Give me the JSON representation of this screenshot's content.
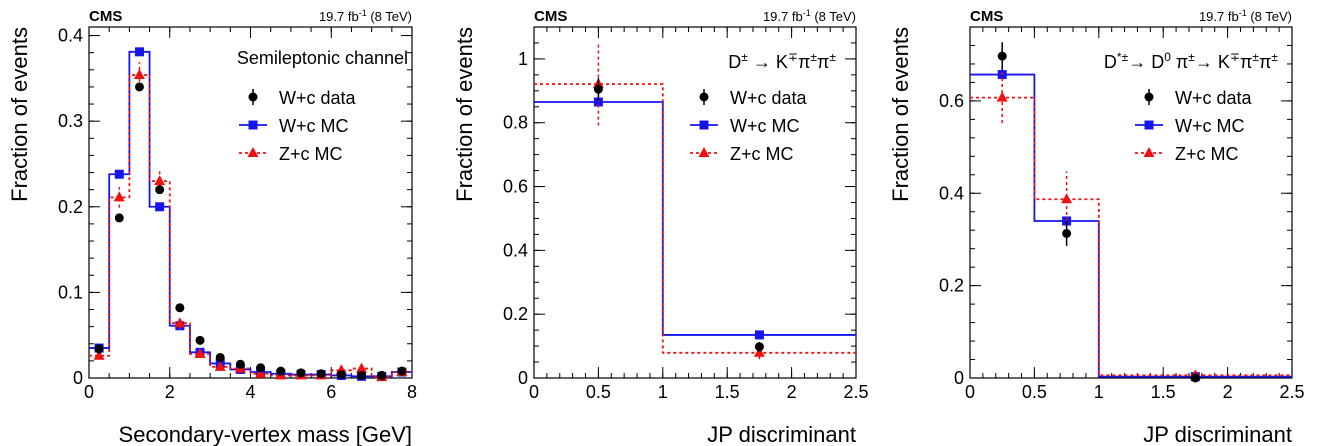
{
  "chart_data": [
    {
      "type": "line",
      "experiment": "CMS",
      "lumi": {
        "pre": "19.7 fb",
        "sup": "-1",
        "post": " (8 TeV)"
      },
      "title": "Semileptonic channel",
      "title_parts": [
        {
          "t": "Semileptonic channel"
        }
      ],
      "xlabel": "Secondary-vertex mass [GeV]",
      "ylabel": "Fraction of events",
      "xlim": [
        0,
        8
      ],
      "ylim": [
        0,
        0.41
      ],
      "xticks": [
        0,
        2,
        4,
        6,
        8
      ],
      "xtick_labels": [
        "0",
        "2",
        "4",
        "6",
        "8"
      ],
      "yticks": [
        0,
        0.1,
        0.2,
        0.3,
        0.4
      ],
      "ytick_labels": [
        "0",
        "0.1",
        "0.2",
        "0.3",
        "0.4"
      ],
      "x_minor_step": 0.5,
      "y_minor_step": 0.02,
      "bin_edges": [
        0,
        0.5,
        1,
        1.5,
        2,
        2.5,
        3,
        3.5,
        4,
        4.5,
        5,
        5.5,
        6,
        6.5,
        7,
        7.5,
        8
      ],
      "legend": {
        "position": "top-right",
        "entries": [
          "W+c data",
          "W+c MC",
          "Z+c MC"
        ]
      },
      "series": [
        {
          "name": "W+c data",
          "style": "points",
          "x": [
            0.25,
            0.75,
            1.25,
            1.75,
            2.25,
            2.75,
            3.25,
            3.75,
            4.25,
            4.75,
            5.25,
            5.75,
            6.25,
            6.75,
            7.25,
            7.75
          ],
          "values": [
            0.034,
            0.187,
            0.34,
            0.22,
            0.082,
            0.044,
            0.024,
            0.016,
            0.012,
            0.008,
            0.006,
            0.005,
            0.004,
            0.003,
            0.003,
            0.008
          ]
        },
        {
          "name": "W+c MC",
          "style": "histogram",
          "x": [
            0.25,
            0.75,
            1.25,
            1.75,
            2.25,
            2.75,
            3.25,
            3.75,
            4.25,
            4.75,
            5.25,
            5.75,
            6.25,
            6.75,
            7.25,
            7.75
          ],
          "values": [
            0.035,
            0.238,
            0.381,
            0.2,
            0.061,
            0.03,
            0.017,
            0.01,
            0.007,
            0.005,
            0.004,
            0.004,
            0.003,
            0.002,
            0.002,
            0.007
          ]
        },
        {
          "name": "Z+c MC",
          "style": "histogram-dashed",
          "x": [
            0.25,
            0.75,
            1.25,
            1.75,
            2.25,
            2.75,
            3.25,
            3.75,
            4.25,
            4.75,
            5.25,
            5.75,
            6.25,
            6.75,
            7.25,
            7.75
          ],
          "values": [
            0.026,
            0.211,
            0.354,
            0.23,
            0.064,
            0.028,
            0.013,
            0.011,
            0.005,
            0.003,
            0.003,
            0.003,
            0.009,
            0.011,
            0.001,
            0.007
          ],
          "errors": [
            0.004,
            0.012,
            0.015,
            0.013,
            0.007,
            0.005,
            0.004,
            0.004,
            0.003,
            0.002,
            0.002,
            0.002,
            0.003,
            0.003,
            0.001,
            0.002
          ]
        }
      ]
    },
    {
      "type": "line",
      "experiment": "CMS",
      "lumi": {
        "pre": "19.7 fb",
        "sup": "-1",
        "post": " (8 TeV)"
      },
      "title": "D± → K∓π±π±",
      "title_parts": [
        {
          "t": "D"
        },
        {
          "t": "±",
          "sup": true
        },
        {
          "t": " → K"
        },
        {
          "t": "∓",
          "sup": true
        },
        {
          "t": "π"
        },
        {
          "t": "±",
          "sup": true
        },
        {
          "t": "π"
        },
        {
          "t": "±",
          "sup": true
        }
      ],
      "xlabel": "JP discriminant",
      "ylabel": "Fraction of events",
      "xlim": [
        0,
        2.5
      ],
      "ylim": [
        0,
        1.1
      ],
      "xticks": [
        0,
        0.5,
        1,
        1.5,
        2,
        2.5
      ],
      "xtick_labels": [
        "0",
        "0.5",
        "1",
        "1.5",
        "2",
        "2.5"
      ],
      "yticks": [
        0,
        0.2,
        0.4,
        0.6,
        0.8,
        1
      ],
      "ytick_labels": [
        "0",
        "0.2",
        "0.4",
        "0.6",
        "0.8",
        "1"
      ],
      "x_minor_step": 0.1,
      "y_minor_step": 0.05,
      "bin_edges": [
        0,
        1,
        2.5
      ],
      "legend": {
        "position": "top-right",
        "entries": [
          "W+c data",
          "W+c MC",
          "Z+c MC"
        ]
      },
      "series": [
        {
          "name": "W+c data",
          "style": "points",
          "x": [
            0.5,
            1.75
          ],
          "values": [
            0.905,
            0.098
          ],
          "errors": [
            0.035,
            0.015
          ]
        },
        {
          "name": "W+c MC",
          "style": "histogram",
          "x": [
            0.5,
            1.75
          ],
          "values": [
            0.865,
            0.135
          ]
        },
        {
          "name": "Z+c MC",
          "style": "histogram-dashed",
          "x": [
            0.5,
            1.75
          ],
          "values": [
            0.921,
            0.079
          ],
          "errors": [
            0.13,
            0.02
          ]
        }
      ]
    },
    {
      "type": "line",
      "experiment": "CMS",
      "lumi": {
        "pre": "19.7 fb",
        "sup": "-1",
        "post": " (8 TeV)"
      },
      "title": "D*± → D0 π± → K∓π±π±",
      "title_parts": [
        {
          "t": "D"
        },
        {
          "t": "*±",
          "sup": true
        },
        {
          "t": "→ D"
        },
        {
          "t": "0",
          "sup": true
        },
        {
          "t": " π"
        },
        {
          "t": "±",
          "sup": true
        },
        {
          "t": "→ K"
        },
        {
          "t": "∓",
          "sup": true
        },
        {
          "t": "π"
        },
        {
          "t": "±",
          "sup": true
        },
        {
          "t": "π"
        },
        {
          "t": "±",
          "sup": true
        }
      ],
      "xlabel": "JP discriminant",
      "ylabel": "Fraction of events",
      "xlim": [
        0,
        2.5
      ],
      "ylim": [
        0,
        0.76
      ],
      "xticks": [
        0,
        0.5,
        1,
        1.5,
        2,
        2.5
      ],
      "xtick_labels": [
        "0",
        "0.5",
        "1",
        "1.5",
        "2",
        "2.5"
      ],
      "yticks": [
        0,
        0.2,
        0.4,
        0.6
      ],
      "ytick_labels": [
        "0",
        "0.2",
        "0.4",
        "0.6"
      ],
      "x_minor_step": 0.1,
      "y_minor_step": 0.04,
      "bin_edges": [
        0,
        0.5,
        1,
        2.5
      ],
      "legend": {
        "position": "top-right",
        "entries": [
          "W+c data",
          "W+c MC",
          "Z+c MC"
        ]
      },
      "series": [
        {
          "name": "W+c data",
          "style": "points",
          "x": [
            0.25,
            0.75,
            1.75
          ],
          "values": [
            0.697,
            0.313,
            0.0
          ],
          "errors": [
            0.03,
            0.027,
            0.005
          ]
        },
        {
          "name": "W+c MC",
          "style": "histogram",
          "x": [
            0.25,
            0.75,
            1.75
          ],
          "values": [
            0.657,
            0.34,
            0.003
          ]
        },
        {
          "name": "Z+c MC",
          "style": "histogram-dashed",
          "x": [
            0.25,
            0.75,
            1.75
          ],
          "values": [
            0.607,
            0.387,
            0.006
          ],
          "errors": [
            0.055,
            0.06,
            0.004
          ]
        }
      ]
    }
  ],
  "colors": {
    "data": "#000000",
    "wc_mc": "#1414f0",
    "zc_mc": "#f01010",
    "axis": "#000000"
  }
}
